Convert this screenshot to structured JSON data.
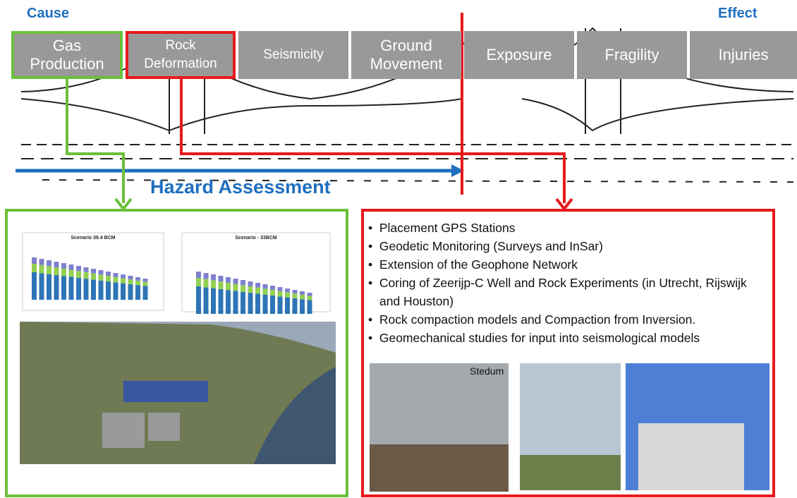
{
  "header": {
    "cause": "Cause",
    "effect": "Effect"
  },
  "chain": [
    "Gas Production",
    "Rock Deformation",
    "Seismicity",
    "Ground Movement",
    "Exposure",
    "Fragility",
    "Injuries"
  ],
  "hazard_label": "Hazard Assessment",
  "left_panel": {
    "chart_titles": [
      "Scenario 39.4 BCM",
      "Scenario - 33BCM"
    ]
  },
  "right_panel": {
    "bullets": [
      "Placement GPS Stations",
      "Geodetic Monitoring (Surveys and InSar)",
      "Extension of the Geophone Network",
      "Coring of Zeerijp-C Well and Rock Experiments (in Utrecht, Rijswijk and Houston)",
      "Rock compaction models and Compaction from Inversion.",
      "Geomechanical studies for input into seismological models"
    ],
    "photo_caption": "Stedum"
  }
}
